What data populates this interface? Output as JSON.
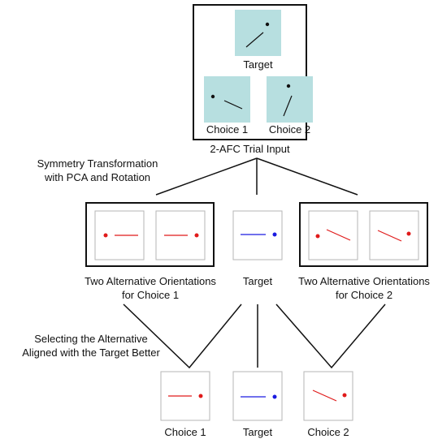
{
  "top": {
    "target_label": "Target",
    "choice1_label": "Choice 1",
    "choice2_label": "Choice 2",
    "caption": "2-AFC Trial Input"
  },
  "step1": {
    "caption_line1": "Symmetry Transformation",
    "caption_line2": "with PCA and Rotation"
  },
  "middle": {
    "left_label_line1": "Two Alternative Orientations",
    "left_label_line2": "for Choice 1",
    "target_label": "Target",
    "right_label_line1": "Two Alternative Orientations",
    "right_label_line2": "for Choice 2"
  },
  "step2": {
    "caption_line1": "Selecting the Alternative",
    "caption_line2": "Aligned with the Target Better"
  },
  "bottom": {
    "choice1_label": "Choice 1",
    "target_label": "Target",
    "choice2_label": "Choice 2"
  },
  "colors": {
    "stimulus_fill": "#b7dfe0",
    "red": "#e01a1a",
    "blue": "#1a1ae0",
    "frame": "#111111",
    "panel_border": "#b5b5b5"
  }
}
